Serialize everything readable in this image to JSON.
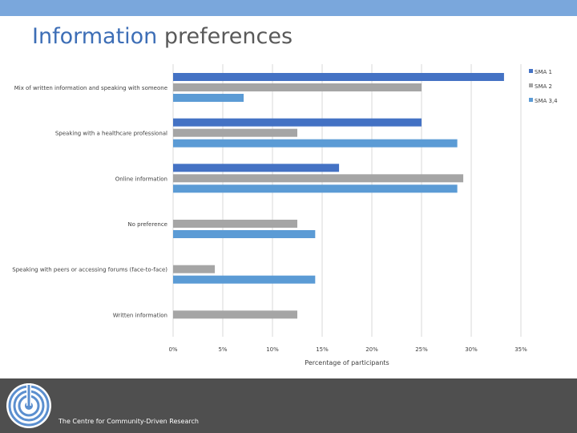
{
  "header": {
    "title_part1": "Information",
    "title_part2": "preferences"
  },
  "colors": {
    "top_bar": "#7aa7dc",
    "footer": "#4f4f4f",
    "gridline": "#d9d9d9",
    "SMA 1": "#4472c4",
    "SMA 2": "#a5a5a5",
    "SMA 3,4": "#5b9bd5"
  },
  "footer": {
    "org_name": "The Centre for Community-Driven Research",
    "logo_icon": "concentric-circles-logo-icon"
  },
  "chart_data": {
    "type": "bar",
    "orientation": "horizontal",
    "categories": [
      "Mix of written information and speaking with someone",
      "Speaking with a healthcare professional",
      "Online information",
      "No preference",
      "Speaking with peers or accessing forums (face-to-face)",
      "Written information"
    ],
    "series": [
      {
        "name": "SMA 1",
        "values": [
          33.3,
          25,
          16.7,
          0,
          0,
          0
        ]
      },
      {
        "name": "SMA 2",
        "values": [
          25,
          12.5,
          29.2,
          12.5,
          4.2,
          12.5
        ]
      },
      {
        "name": "SMA 3,4",
        "values": [
          7.1,
          28.6,
          28.6,
          14.3,
          14.3,
          0
        ]
      }
    ],
    "xlabel": "Percentage of participants",
    "ylabel": "",
    "xlim": [
      0,
      35
    ],
    "xticks": [
      "0%",
      "5%",
      "10%",
      "15%",
      "20%",
      "25%",
      "30%",
      "35%"
    ],
    "grid": true,
    "legend_position": "top-right"
  }
}
